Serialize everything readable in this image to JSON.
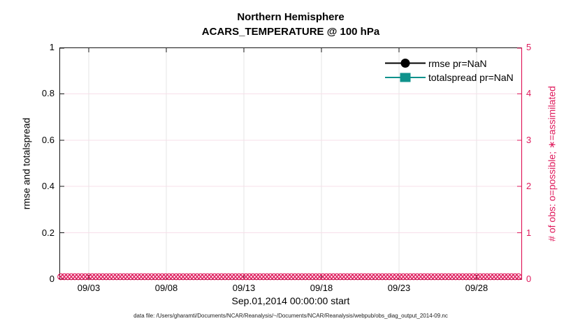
{
  "title": {
    "line1": "Northern Hemisphere",
    "line2": "ACARS_TEMPERATURE @ 100 hPa"
  },
  "legend": [
    {
      "label": "rmse pr=NaN",
      "color": "#000000",
      "marker": "circle"
    },
    {
      "label": "totalspread pr=NaN",
      "color": "#0F928C",
      "marker": "square"
    }
  ],
  "axes": {
    "left": {
      "label": "rmse and totalspread",
      "ticks": [
        "0",
        "0.2",
        "0.4",
        "0.6",
        "0.8",
        "1"
      ],
      "color": "#000000"
    },
    "right": {
      "label": "# of obs: o=possible; ∗=assimilated",
      "ticks": [
        "0",
        "1",
        "2",
        "3",
        "4",
        "5"
      ],
      "color": "#DF1A5C"
    },
    "x": {
      "label": "Sep.01,2014 00:00:00 start",
      "ticks": [
        "09/03",
        "09/08",
        "09/13",
        "09/18",
        "09/23",
        "09/28"
      ]
    }
  },
  "caption": "data file: /Users/gharamti/Documents/NCAR/Reanalysis/~/Documents/NCAR/Reanalysis/webpub/obs_diag_output_2014-09.nc",
  "obs_band": {
    "value": 0,
    "marker_count": 132,
    "color": "#DF1A5C",
    "marker_types": [
      "o",
      "x"
    ]
  },
  "chart_data": {
    "type": "line",
    "title": "Northern Hemisphere",
    "subtitle": "ACARS_TEMPERATURE @ 100 hPa",
    "xlabel": "Sep.01,2014 00:00:00 start",
    "ylabel_left": "rmse and totalspread",
    "ylabel_right": "# of obs: o=possible; ∗=assimilated",
    "x_ticks": [
      "09/03",
      "09/08",
      "09/13",
      "09/18",
      "09/23",
      "09/28"
    ],
    "x_range": [
      "2014-09-01",
      "2014-09-30"
    ],
    "ylim_left": [
      0,
      1
    ],
    "ylim_right": [
      0,
      5
    ],
    "grid": true,
    "legend_position": "upper-right-inside",
    "series": [
      {
        "name": "rmse pr=NaN",
        "axis": "left",
        "color": "#000000",
        "marker": "circle",
        "values": "NaN (nothing plotted)"
      },
      {
        "name": "totalspread pr=NaN",
        "axis": "left",
        "color": "#0F928C",
        "marker": "square",
        "values": "NaN (nothing plotted)"
      },
      {
        "name": "# of obs possible (o)",
        "axis": "right",
        "color": "#DF1A5C",
        "marker": "o",
        "constant_value": 0
      },
      {
        "name": "# of obs assimilated (x)",
        "axis": "right",
        "color": "#DF1A5C",
        "marker": "x",
        "constant_value": 0
      }
    ]
  }
}
